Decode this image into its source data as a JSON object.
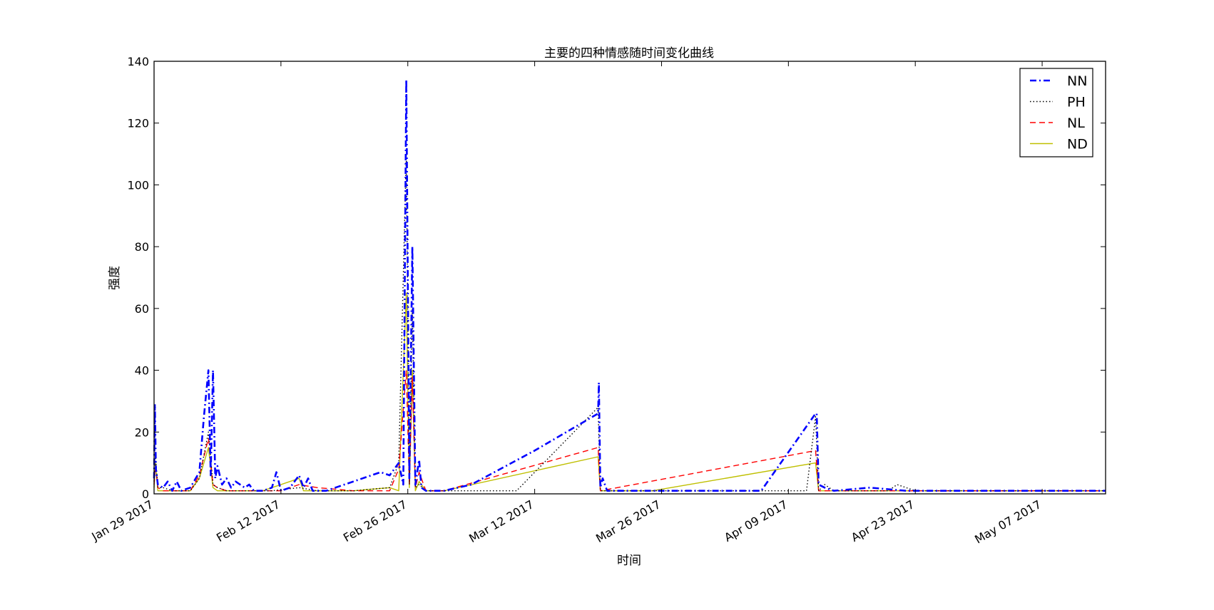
{
  "chart_data": {
    "type": "line",
    "title": "主要的四种情感随时间变化曲线",
    "xlabel": "时间",
    "ylabel": "强度",
    "xlim": [
      "2017-01-29",
      "2017-05-14"
    ],
    "ylim": [
      0,
      140
    ],
    "y_ticks": [
      0,
      20,
      40,
      60,
      80,
      100,
      120,
      140
    ],
    "x_ticks": [
      {
        "date": "2017-01-29",
        "label": "Jan 29 2017"
      },
      {
        "date": "2017-02-12",
        "label": "Feb 12 2017"
      },
      {
        "date": "2017-02-26",
        "label": "Feb 26 2017"
      },
      {
        "date": "2017-03-12",
        "label": "Mar 12 2017"
      },
      {
        "date": "2017-03-26",
        "label": "Mar 26 2017"
      },
      {
        "date": "2017-04-09",
        "label": "Apr 09 2017"
      },
      {
        "date": "2017-04-23",
        "label": "Apr 23 2017"
      },
      {
        "date": "2017-05-07",
        "label": "May 07 2017"
      }
    ],
    "grid": false,
    "legend_position": "top-right",
    "series": [
      {
        "name": "NN",
        "color": "#0000ff",
        "style": "dashdot",
        "points": [
          [
            "2017-01-29",
            5
          ],
          [
            "2017-01-29 02:00",
            29
          ],
          [
            "2017-01-29 05:00",
            8
          ],
          [
            "2017-01-29 10:00",
            3
          ],
          [
            "2017-01-30",
            2
          ],
          [
            "2017-01-30 12:00",
            4
          ],
          [
            "2017-01-31",
            1
          ],
          [
            "2017-01-31 12:00",
            4
          ],
          [
            "2017-02-01",
            1
          ],
          [
            "2017-02-02",
            2
          ],
          [
            "2017-02-03",
            7
          ],
          [
            "2017-02-03 12:00",
            25
          ],
          [
            "2017-02-04",
            40
          ],
          [
            "2017-02-04 06:00",
            6
          ],
          [
            "2017-02-04 12:00",
            40
          ],
          [
            "2017-02-04 18:00",
            5
          ],
          [
            "2017-02-05",
            9
          ],
          [
            "2017-02-05 12:00",
            3
          ],
          [
            "2017-02-06",
            5
          ],
          [
            "2017-02-06 12:00",
            2
          ],
          [
            "2017-02-07",
            4
          ],
          [
            "2017-02-08",
            2
          ],
          [
            "2017-02-08 12:00",
            3
          ],
          [
            "2017-02-09",
            1
          ],
          [
            "2017-02-10",
            1
          ],
          [
            "2017-02-11",
            2
          ],
          [
            "2017-02-11 12:00",
            7
          ],
          [
            "2017-02-12",
            1
          ],
          [
            "2017-02-13",
            2
          ],
          [
            "2017-02-14",
            6
          ],
          [
            "2017-02-14 12:00",
            2
          ],
          [
            "2017-02-15",
            5
          ],
          [
            "2017-02-15 12:00",
            1
          ],
          [
            "2017-02-16",
            1
          ],
          [
            "2017-02-17",
            1
          ],
          [
            "2017-02-18",
            2
          ],
          [
            "2017-02-19",
            3
          ],
          [
            "2017-02-21",
            5
          ],
          [
            "2017-02-23",
            7
          ],
          [
            "2017-02-24",
            6
          ],
          [
            "2017-02-25",
            10
          ],
          [
            "2017-02-25 12:00",
            3
          ],
          [
            "2017-02-25 20:00",
            134
          ],
          [
            "2017-02-26 04:00",
            5
          ],
          [
            "2017-02-26 12:00",
            80
          ],
          [
            "2017-02-26 20:00",
            3
          ],
          [
            "2017-02-27 06:00",
            11
          ],
          [
            "2017-02-27 12:00",
            2
          ],
          [
            "2017-02-28",
            1
          ],
          [
            "2017-03-01",
            1
          ],
          [
            "2017-03-02",
            1
          ],
          [
            "2017-03-05",
            3
          ],
          [
            "2017-03-12",
            14
          ],
          [
            "2017-03-19",
            26
          ],
          [
            "2017-03-19 02:00",
            36
          ],
          [
            "2017-03-19 06:00",
            2
          ],
          [
            "2017-03-19 12:00",
            5
          ],
          [
            "2017-03-20",
            1
          ],
          [
            "2017-03-25",
            1
          ],
          [
            "2017-03-30",
            1
          ],
          [
            "2017-04-06",
            1
          ],
          [
            "2017-04-12",
            26
          ],
          [
            "2017-04-12 03:00",
            26
          ],
          [
            "2017-04-12 08:00",
            3
          ],
          [
            "2017-04-13",
            2
          ],
          [
            "2017-04-14",
            1
          ],
          [
            "2017-04-18",
            2
          ],
          [
            "2017-04-22",
            1
          ],
          [
            "2017-05-14",
            1
          ]
        ]
      },
      {
        "name": "PH",
        "color": "#000000",
        "style": "dotted",
        "points": [
          [
            "2017-01-29",
            4
          ],
          [
            "2017-01-29 04:00",
            12
          ],
          [
            "2017-01-29 10:00",
            2
          ],
          [
            "2017-01-30",
            2
          ],
          [
            "2017-01-31",
            1
          ],
          [
            "2017-02-02",
            1
          ],
          [
            "2017-02-03",
            5
          ],
          [
            "2017-02-04",
            20
          ],
          [
            "2017-02-04 12:00",
            3
          ],
          [
            "2017-02-05",
            2
          ],
          [
            "2017-02-06",
            1
          ],
          [
            "2017-02-08",
            1
          ],
          [
            "2017-02-11",
            1
          ],
          [
            "2017-02-14",
            2
          ],
          [
            "2017-02-16",
            1
          ],
          [
            "2017-02-20",
            1
          ],
          [
            "2017-02-24",
            2
          ],
          [
            "2017-02-25",
            10
          ],
          [
            "2017-02-25 20:00",
            110
          ],
          [
            "2017-02-26 04:00",
            3
          ],
          [
            "2017-02-26 12:00",
            60
          ],
          [
            "2017-02-26 20:00",
            2
          ],
          [
            "2017-02-27 06:00",
            3
          ],
          [
            "2017-02-28",
            1
          ],
          [
            "2017-03-10",
            1
          ],
          [
            "2017-03-19",
            28
          ],
          [
            "2017-03-19 06:00",
            1
          ],
          [
            "2017-03-25",
            1
          ],
          [
            "2017-04-11",
            1
          ],
          [
            "2017-04-12",
            25
          ],
          [
            "2017-04-12 08:00",
            1
          ],
          [
            "2017-04-13",
            3
          ],
          [
            "2017-04-14",
            1
          ],
          [
            "2017-04-20",
            1
          ],
          [
            "2017-04-21",
            3
          ],
          [
            "2017-04-23",
            1
          ],
          [
            "2017-05-14",
            1
          ]
        ]
      },
      {
        "name": "NL",
        "color": "#ff0000",
        "style": "dashed",
        "points": [
          [
            "2017-01-29",
            3
          ],
          [
            "2017-01-29 04:00",
            9
          ],
          [
            "2017-01-29 10:00",
            2
          ],
          [
            "2017-01-30",
            1
          ],
          [
            "2017-02-02",
            1
          ],
          [
            "2017-02-03",
            6
          ],
          [
            "2017-02-04",
            18
          ],
          [
            "2017-02-04 12:00",
            3
          ],
          [
            "2017-02-05",
            2
          ],
          [
            "2017-02-06",
            1
          ],
          [
            "2017-02-08",
            1
          ],
          [
            "2017-02-12",
            1
          ],
          [
            "2017-02-14",
            3
          ],
          [
            "2017-02-16",
            2
          ],
          [
            "2017-02-20",
            1
          ],
          [
            "2017-02-24",
            1
          ],
          [
            "2017-02-25",
            8
          ],
          [
            "2017-02-25 20:00",
            40
          ],
          [
            "2017-02-26 04:00",
            3
          ],
          [
            "2017-02-26 12:00",
            38
          ],
          [
            "2017-02-26 20:00",
            2
          ],
          [
            "2017-02-27 06:00",
            7
          ],
          [
            "2017-02-28",
            1
          ],
          [
            "2017-03-02",
            1
          ],
          [
            "2017-03-19",
            15
          ],
          [
            "2017-03-19 06:00",
            1
          ],
          [
            "2017-04-12",
            14
          ],
          [
            "2017-04-12 08:00",
            1
          ],
          [
            "2017-04-14",
            1
          ],
          [
            "2017-05-14",
            1
          ]
        ]
      },
      {
        "name": "ND",
        "color": "#bfbf00",
        "style": "solid",
        "points": [
          [
            "2017-01-29",
            2
          ],
          [
            "2017-01-29 04:00",
            10
          ],
          [
            "2017-01-29 10:00",
            1
          ],
          [
            "2017-01-30",
            1
          ],
          [
            "2017-02-02",
            1
          ],
          [
            "2017-02-03",
            5
          ],
          [
            "2017-02-04",
            15
          ],
          [
            "2017-02-04 12:00",
            2
          ],
          [
            "2017-02-05",
            1
          ],
          [
            "2017-02-07",
            1
          ],
          [
            "2017-02-10",
            1
          ],
          [
            "2017-02-14",
            5
          ],
          [
            "2017-02-14 12:00",
            1
          ],
          [
            "2017-02-20",
            1
          ],
          [
            "2017-02-24",
            2
          ],
          [
            "2017-02-25",
            1
          ],
          [
            "2017-02-25 20:00",
            65
          ],
          [
            "2017-02-26 04:00",
            2
          ],
          [
            "2017-02-26 12:00",
            40
          ],
          [
            "2017-02-26 20:00",
            1
          ],
          [
            "2017-02-27 06:00",
            4
          ],
          [
            "2017-02-28",
            1
          ],
          [
            "2017-03-02",
            1
          ],
          [
            "2017-03-19",
            12
          ],
          [
            "2017-03-19 06:00",
            1
          ],
          [
            "2017-03-25",
            1
          ],
          [
            "2017-04-12",
            10
          ],
          [
            "2017-04-12 08:00",
            1
          ],
          [
            "2017-05-14",
            1
          ]
        ]
      }
    ]
  }
}
